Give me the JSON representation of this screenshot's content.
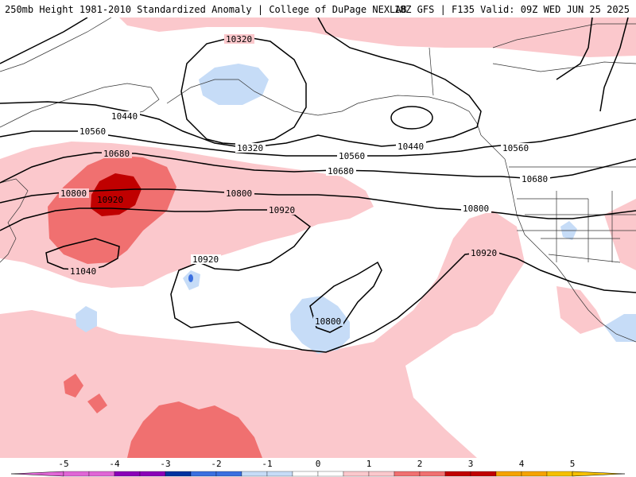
{
  "header": {
    "left": "250mb Height 1981-2010 Standardized Anomaly | College of DuPage NEXLAB",
    "right": "18Z GFS | F135 Valid: 09Z WED JUN 25 2025"
  },
  "colors": {
    "neg5": "#e066d6",
    "neg4": "#8a00b8",
    "neg3": "#0033a0",
    "neg2": "#3a6fe0",
    "neg1": "#c6dcf7",
    "zero": "#ffffff",
    "pos1": "#fbc8cc",
    "pos2": "#f07070",
    "pos3": "#c00000",
    "pos4": "#f5a300",
    "pos5": "#f5c000"
  },
  "colorbar": {
    "ticks": [
      "-5",
      "-4",
      "-3",
      "-2",
      "-1",
      "0",
      "1",
      "2",
      "3",
      "4",
      "5"
    ]
  },
  "contour_labels": {
    "c10320a": "10320",
    "c10320b": "10320",
    "c10440a": "10440",
    "c10440b": "10440",
    "c10560a": "10560",
    "c10560b": "10560",
    "c10560c": "10560",
    "c10680a": "10680",
    "c10680b": "10680",
    "c10680c": "10680",
    "c10800a": "10800",
    "c10800b": "10800",
    "c10800c": "10800",
    "c10800d": "10800",
    "c10920a": "10920",
    "c10920b": "10920",
    "c10920c": "10920",
    "c10920d": "10920",
    "c11040a": "11040"
  }
}
